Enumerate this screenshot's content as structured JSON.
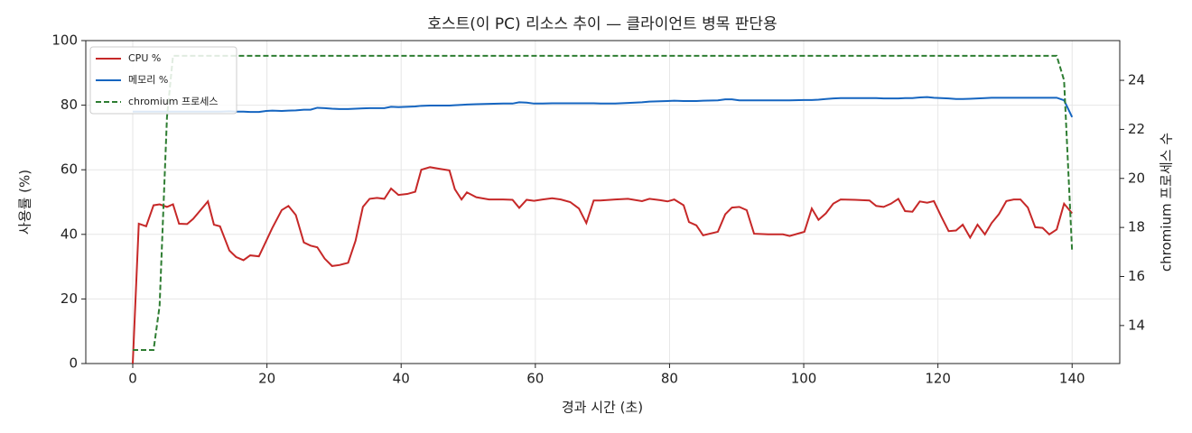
{
  "chart_data": {
    "type": "line",
    "title": "호스트(이 PC) 리소스 추이 — 클라이언트 병목 판단용",
    "xlabel": "경과 시간 (초)",
    "ylabel": "사용률 (%)",
    "y2label": "chromium 프로세스 수",
    "x": [
      0,
      0.9,
      2.0,
      3.1,
      4.0,
      5.1,
      6.0,
      6.9,
      8.1,
      9.0,
      11.2,
      12.1,
      13.0,
      14.4,
      15.4,
      16.5,
      17.5,
      18.8,
      19.9,
      20.8,
      22.2,
      23.2,
      24.3,
      25.5,
      26.5,
      27.5,
      28.6,
      29.7,
      30.8,
      32.1,
      33.2,
      34.3,
      35.3,
      36.4,
      37.5,
      38.5,
      39.6,
      40.9,
      42.1,
      43.0,
      44.3,
      45.7,
      47.2,
      48.0,
      49.0,
      49.8,
      51.2,
      53.1,
      55.2,
      56.6,
      57.6,
      58.7,
      59.8,
      61.1,
      62.5,
      63.8,
      65.2,
      66.5,
      67.6,
      68.7,
      69.7,
      71.9,
      73.8,
      75.9,
      77.0,
      78.6,
      79.7,
      80.7,
      82.1,
      82.9,
      84.0,
      85.0,
      87.2,
      88.3,
      89.3,
      90.4,
      91.5,
      92.6,
      94.7,
      96.9,
      97.9,
      100.1,
      101.2,
      102.2,
      103.3,
      104.4,
      105.5,
      107.6,
      109.8,
      110.8,
      111.9,
      113.0,
      114.1,
      115.1,
      116.2,
      117.3,
      118.4,
      119.4,
      120.5,
      121.6,
      122.7,
      123.7,
      124.8,
      125.9,
      127.0,
      128.0,
      129.1,
      130.2,
      131.3,
      132.3,
      133.4,
      134.5,
      135.6,
      136.6,
      137.7,
      138.8,
      140
    ],
    "series": [
      {
        "name": "CPU %",
        "color": "#c62828",
        "linestyle": "solid",
        "values": [
          0,
          43.3,
          42.5,
          49,
          49.3,
          48.5,
          49.3,
          43.3,
          43.2,
          44.8,
          50.2,
          43,
          42.5,
          35,
          33,
          32,
          33.5,
          33.2,
          38,
          42,
          47.5,
          48.8,
          46,
          37.5,
          36.5,
          36,
          32.5,
          30.2,
          30.5,
          31.2,
          38,
          48.5,
          51,
          51.3,
          51,
          54.2,
          52.2,
          52.5,
          53.2,
          60,
          60.8,
          60.3,
          59.8,
          54,
          50.8,
          53,
          51.5,
          50.8,
          50.8,
          50.7,
          48.2,
          50.7,
          50.4,
          50.8,
          51.2,
          50.8,
          50,
          48,
          43.5,
          50.5,
          50.5,
          50.8,
          51,
          50.3,
          51,
          50.6,
          50.2,
          50.8,
          49,
          43.8,
          42.8,
          39.7,
          40.8,
          46.2,
          48.3,
          48.5,
          47.5,
          40.2,
          40,
          40,
          39.5,
          40.8,
          48,
          44.5,
          46.5,
          49.5,
          50.8,
          50.7,
          50.5,
          48.8,
          48.5,
          49.5,
          51,
          47.2,
          47,
          50.2,
          49.8,
          50.3,
          45.5,
          41,
          41.2,
          43,
          39,
          43,
          40,
          43.5,
          46.3,
          50.3,
          50.8,
          50.8,
          48.3,
          42.2,
          42,
          40,
          41.5,
          49.5,
          46.5
        ]
      },
      {
        "name": "메모리 %",
        "color": "#1565c0",
        "linestyle": "solid",
        "values": [
          78,
          78,
          78,
          78,
          78,
          78,
          78,
          78,
          78,
          78,
          78,
          78,
          78,
          78.1,
          78,
          78,
          77.9,
          77.9,
          78.2,
          78.3,
          78.2,
          78.3,
          78.4,
          78.6,
          78.6,
          79.2,
          79.1,
          78.9,
          78.8,
          78.8,
          78.9,
          79,
          79.1,
          79.1,
          79.1,
          79.5,
          79.4,
          79.5,
          79.6,
          79.8,
          79.9,
          79.9,
          79.9,
          80,
          80.1,
          80.2,
          80.3,
          80.4,
          80.5,
          80.5,
          80.9,
          80.8,
          80.5,
          80.5,
          80.6,
          80.6,
          80.6,
          80.6,
          80.6,
          80.6,
          80.5,
          80.5,
          80.7,
          80.9,
          81.1,
          81.2,
          81.3,
          81.4,
          81.3,
          81.3,
          81.3,
          81.4,
          81.5,
          81.8,
          81.8,
          81.5,
          81.5,
          81.5,
          81.5,
          81.5,
          81.5,
          81.6,
          81.6,
          81.7,
          81.9,
          82.1,
          82.2,
          82.2,
          82.2,
          82.2,
          82.1,
          82.1,
          82.1,
          82.2,
          82.2,
          82.4,
          82.5,
          82.3,
          82.2,
          82.1,
          81.9,
          81.9,
          82,
          82.1,
          82.2,
          82.3,
          82.3,
          82.3,
          82.3,
          82.3,
          82.3,
          82.3,
          82.3,
          82.3,
          82.3,
          81.5,
          76.3
        ]
      },
      {
        "name": "chromium 프로세스",
        "color": "#2e7d32",
        "linestyle": "dashed",
        "axis": "y2",
        "values": [
          13,
          13,
          13,
          13,
          14.8,
          22.5,
          25,
          25,
          25,
          25,
          25,
          25,
          25,
          25,
          25,
          25,
          25,
          25,
          25,
          25,
          25,
          25,
          25,
          25,
          25,
          25,
          25,
          25,
          25,
          25,
          25,
          25,
          25,
          25,
          25,
          25,
          25,
          25,
          25,
          25,
          25,
          25,
          25,
          25,
          25,
          25,
          25,
          25,
          25,
          25,
          25,
          25,
          25,
          25,
          25,
          25,
          25,
          25,
          25,
          25,
          25,
          25,
          25,
          25,
          25,
          25,
          25,
          25,
          25,
          25,
          25,
          25,
          25,
          25,
          25,
          25,
          25,
          25,
          25,
          25,
          25,
          25,
          25,
          25,
          25,
          25,
          25,
          25,
          25,
          25,
          25,
          25,
          25,
          25,
          25,
          25,
          25,
          25,
          25,
          25,
          25,
          25,
          25,
          25,
          25,
          25,
          25,
          25,
          25,
          25,
          25,
          25,
          25,
          25,
          25,
          24,
          17
        ]
      }
    ],
    "xlim": [
      -7,
      147.1
    ],
    "xticks": [
      0,
      20,
      40,
      60,
      80,
      100,
      120,
      140
    ],
    "ylim": [
      0,
      100
    ],
    "yticks": [
      0,
      20,
      40,
      60,
      80,
      100
    ],
    "y2lim": [
      12.45,
      25.62
    ],
    "y2ticks": [
      14,
      16,
      18,
      20,
      22,
      24
    ],
    "grid": true,
    "legend": "upper-left"
  }
}
